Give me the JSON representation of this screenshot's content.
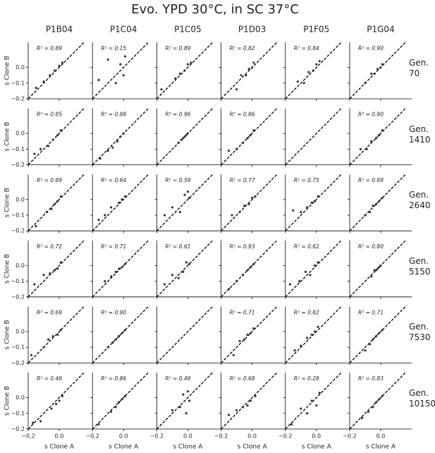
{
  "title": "Evo. YPD 30°C, in SC 37°C",
  "columns": [
    "P1B04",
    "P1C04",
    "P1C05",
    "P1D03",
    "P1F05",
    "P1G04"
  ],
  "rows": [
    "Gen. 70",
    "Gen. 1410",
    "Gen. 2640",
    "Gen. 5150",
    "Gen. 7530",
    "Gen. 10150"
  ],
  "x_label": "s Clone A",
  "y_label": "s Clone B",
  "xlim": [
    -0.2,
    0.2
  ],
  "ylim": [
    -0.2,
    0.16
  ],
  "xticks": [
    {
      "value": -0.2,
      "label": "−0.2"
    },
    {
      "value": 0,
      "label": "0.0"
    }
  ],
  "yticks": [
    {
      "value": -0.2,
      "label": "−0.2"
    },
    {
      "value": -0.1,
      "label": "−0.1"
    },
    {
      "value": 0,
      "label": "0.0"
    }
  ],
  "chart_data": [
    {
      "type": "scatter",
      "annotation": "R² = 0.89",
      "x": [
        -0.15,
        -0.1,
        -0.06,
        -0.03,
        0,
        0.02
      ],
      "y": [
        -0.13,
        -0.09,
        -0.05,
        -0.02,
        0.01,
        0.03
      ]
    },
    {
      "type": "scatter",
      "annotation": "R² = 0.15",
      "x": [
        -0.16,
        -0.1,
        -0.05,
        -0.02,
        0,
        0.01
      ],
      "y": [
        -0.08,
        0.05,
        -0.1,
        0.02,
        -0.05,
        0.07
      ]
    },
    {
      "type": "scatter",
      "annotation": "R² = 0.89",
      "x": [
        -0.17,
        -0.08,
        -0.05,
        -0.02,
        0,
        0.02
      ],
      "y": [
        -0.14,
        -0.07,
        -0.04,
        -0.02,
        0.02,
        0.03
      ]
    },
    {
      "type": "scatter",
      "annotation": "R² = 0.82",
      "x": [
        -0.1,
        -0.07,
        -0.04,
        -0.02,
        0,
        0.01
      ],
      "y": [
        -0.14,
        -0.05,
        -0.05,
        -0.01,
        0,
        0.03
      ]
    },
    {
      "type": "scatter",
      "annotation": "R² = 0.84",
      "x": [
        -0.12,
        -0.08,
        -0.05,
        -0.02,
        0,
        0.02
      ],
      "y": [
        -0.09,
        -0.1,
        -0.03,
        -0.02,
        0.02,
        0.04
      ]
    },
    {
      "type": "scatter",
      "annotation": "R² = 0.90",
      "x": [
        -0.1,
        -0.06,
        -0.04,
        -0.02,
        0,
        0.01
      ],
      "y": [
        -0.1,
        -0.04,
        -0.04,
        -0.01,
        0,
        0.02
      ]
    },
    {
      "type": "scatter",
      "annotation": "R² = 0.85",
      "x": [
        -0.16,
        -0.12,
        -0.07,
        -0.04,
        -0.01,
        0.01
      ],
      "y": [
        -0.13,
        -0.1,
        -0.08,
        -0.04,
        -0.01,
        0.02
      ]
    },
    {
      "type": "scatter",
      "annotation": "R² = 0.88",
      "x": [
        -0.15,
        -0.1,
        -0.07,
        -0.04,
        -0.02,
        0
      ],
      "y": [
        -0.16,
        -0.11,
        -0.09,
        -0.05,
        -0.02,
        0
      ]
    },
    {
      "type": "scatter",
      "annotation": "R² = 0.96",
      "x": [
        -0.06,
        -0.04,
        -0.03,
        -0.02,
        -0.01,
        0
      ],
      "y": [
        -0.06,
        -0.04,
        -0.03,
        -0.02,
        -0.01,
        0
      ]
    },
    {
      "type": "scatter",
      "annotation": "R² = 0.86",
      "x": [
        -0.15,
        -0.1,
        -0.06,
        -0.03,
        -0.01,
        0.01
      ],
      "y": [
        -0.11,
        -0.1,
        -0.06,
        -0.03,
        -0.01,
        0.02
      ]
    },
    {
      "type": "scatter",
      "x": [],
      "y": []
    },
    {
      "type": "scatter",
      "annotation": "R² = 0.90",
      "x": [
        -0.13,
        -0.09,
        -0.06,
        -0.03,
        -0.01,
        0.01
      ],
      "y": [
        -0.1,
        -0.1,
        -0.05,
        -0.03,
        -0.01,
        0.02
      ]
    },
    {
      "type": "scatter",
      "annotation": "R² = 0.89",
      "x": [
        -0.15,
        -0.08,
        -0.05,
        -0.03,
        -0.01,
        0.01
      ],
      "y": [
        -0.17,
        -0.08,
        -0.06,
        -0.03,
        -0.01,
        0.02
      ]
    },
    {
      "type": "scatter",
      "annotation": "R² = 0.64",
      "x": [
        -0.16,
        -0.12,
        -0.08,
        -0.03,
        -0.01,
        0.01
      ],
      "y": [
        -0.13,
        -0.1,
        -0.05,
        -0.02,
        0,
        0.02
      ]
    },
    {
      "type": "scatter",
      "annotation": "R² = 0.59",
      "x": [
        -0.15,
        -0.1,
        -0.05,
        -0.02,
        0,
        0.01
      ],
      "y": [
        -0.1,
        -0.05,
        -0.08,
        0.03,
        0.05,
        0.01
      ]
    },
    {
      "type": "scatter",
      "annotation": "R² = 0.77",
      "x": [
        -0.13,
        -0.08,
        -0.05,
        -0.02,
        0,
        0.02
      ],
      "y": [
        -0.1,
        -0.08,
        -0.04,
        -0.03,
        0.01,
        0.02
      ]
    },
    {
      "type": "scatter",
      "annotation": "R² = 0.75",
      "x": [
        -0.15,
        -0.1,
        -0.06,
        -0.03,
        -0.01,
        0.01
      ],
      "y": [
        -0.07,
        -0.08,
        -0.05,
        -0.02,
        -0.01,
        0.02
      ]
    },
    {
      "type": "scatter",
      "annotation": "R² = 0.89",
      "x": [
        -0.1,
        -0.07,
        -0.05,
        -0.03,
        -0.01,
        0.01
      ],
      "y": [
        -0.1,
        -0.08,
        -0.04,
        -0.03,
        -0.01,
        0.01
      ]
    },
    {
      "type": "scatter",
      "annotation": "R² = 0.72",
      "x": [
        -0.16,
        -0.1,
        -0.06,
        -0.03,
        -0.01,
        0.01
      ],
      "y": [
        -0.12,
        -0.06,
        -0.05,
        -0.03,
        -0.02,
        0.02
      ]
    },
    {
      "type": "scatter",
      "annotation": "R² = 0.71",
      "x": [
        -0.12,
        -0.08,
        -0.05,
        -0.03,
        -0.01,
        0.01
      ],
      "y": [
        -0.1,
        -0.07,
        -0.04,
        -0.02,
        -0.01,
        0.01
      ]
    },
    {
      "type": "scatter",
      "annotation": "R² = 0.61",
      "x": [
        -0.15,
        -0.1,
        -0.06,
        -0.03,
        -0.01,
        0.01
      ],
      "y": [
        -0.12,
        -0.06,
        -0.08,
        -0.04,
        0.02,
        0.01
      ]
    },
    {
      "type": "scatter",
      "annotation": "R² = 0.93",
      "x": [
        -0.15,
        -0.1,
        -0.06,
        -0.03,
        -0.01,
        0.01
      ],
      "y": [
        -0.15,
        -0.1,
        -0.06,
        -0.03,
        -0.01,
        0.01
      ]
    },
    {
      "type": "scatter",
      "annotation": "R² = 0.62",
      "x": [
        -0.17,
        -0.11,
        -0.07,
        -0.04,
        -0.01,
        0.01
      ],
      "y": [
        -0.12,
        -0.1,
        -0.04,
        -0.06,
        0,
        0.02
      ]
    },
    {
      "type": "scatter",
      "annotation": "R² = 0.80",
      "x": [
        -0.06,
        -0.04,
        -0.03,
        -0.02,
        -0.01,
        0
      ],
      "y": [
        -0.07,
        -0.03,
        -0.03,
        -0.02,
        -0.01,
        0
      ]
    },
    {
      "type": "scatter",
      "annotation": "R² = 0.69",
      "x": [
        -0.18,
        -0.1,
        -0.07,
        -0.04,
        -0.01,
        0.01
      ],
      "y": [
        -0.15,
        -0.1,
        -0.05,
        -0.03,
        -0.02,
        0.01
      ]
    },
    {
      "type": "scatter",
      "annotation": "R² = 0.90",
      "x": [
        -0.1,
        -0.07,
        -0.05,
        -0.03,
        -0.01,
        0.01
      ],
      "y": [
        -0.1,
        -0.07,
        -0.05,
        -0.03,
        -0.01,
        0.01
      ]
    },
    {
      "type": "scatter",
      "x": [],
      "y": []
    },
    {
      "type": "scatter",
      "annotation": "R² = 0.71",
      "x": [
        -0.12,
        -0.08,
        -0.05,
        -0.03,
        -0.01,
        0.01
      ],
      "y": [
        -0.15,
        -0.06,
        -0.05,
        -0.02,
        -0.01,
        0.02
      ]
    },
    {
      "type": "scatter",
      "annotation": "R² = 0.82",
      "x": [
        -0.14,
        -0.1,
        -0.06,
        -0.03,
        -0.01,
        0.01
      ],
      "y": [
        -0.12,
        -0.09,
        -0.04,
        -0.02,
        0,
        0.03
      ]
    },
    {
      "type": "scatter",
      "annotation": "R² = 0.71",
      "x": [
        -0.1,
        -0.07,
        -0.05,
        -0.03,
        -0.01,
        0.01
      ],
      "y": [
        -0.12,
        -0.08,
        -0.05,
        -0.03,
        -0.01,
        0.01
      ]
    },
    {
      "type": "scatter",
      "annotation": "R² = 0.46",
      "x": [
        -0.17,
        -0.12,
        -0.05,
        -0.02,
        0,
        0.02
      ],
      "y": [
        -0.16,
        -0.15,
        -0.07,
        -0.04,
        -0.02,
        0.01
      ]
    },
    {
      "type": "scatter",
      "annotation": "R² = 0.86",
      "x": [
        -0.16,
        -0.08,
        -0.05,
        -0.03,
        -0.01,
        0.01
      ],
      "y": [
        -0.17,
        -0.09,
        -0.06,
        -0.03,
        -0.01,
        0.01
      ]
    },
    {
      "type": "scatter",
      "annotation": "R² = 0.49",
      "x": [
        -0.1,
        -0.05,
        -0.03,
        -0.01,
        0,
        0.01
      ],
      "y": [
        -0.08,
        -0.06,
        0.02,
        -0.1,
        0.04,
        -0.02
      ]
    },
    {
      "type": "scatter",
      "annotation": "R² = 0.68",
      "x": [
        -0.15,
        -0.1,
        -0.06,
        -0.03,
        -0.01,
        0.02
      ],
      "y": [
        -0.11,
        -0.08,
        -0.06,
        -0.05,
        -0.02,
        0.01
      ]
    },
    {
      "type": "scatter",
      "annotation": "R² = 0.28",
      "x": [
        -0.16,
        -0.1,
        -0.06,
        -0.03,
        0,
        0.02
      ],
      "y": [
        -0.17,
        -0.07,
        -0.1,
        -0.02,
        -0.05,
        0.03
      ]
    },
    {
      "type": "scatter",
      "annotation": "R² = 0.83",
      "x": [
        -0.12,
        -0.08,
        -0.05,
        -0.03,
        -0.01,
        0.01
      ],
      "y": [
        -0.13,
        -0.09,
        -0.06,
        -0.03,
        -0.01,
        0.01
      ]
    }
  ]
}
